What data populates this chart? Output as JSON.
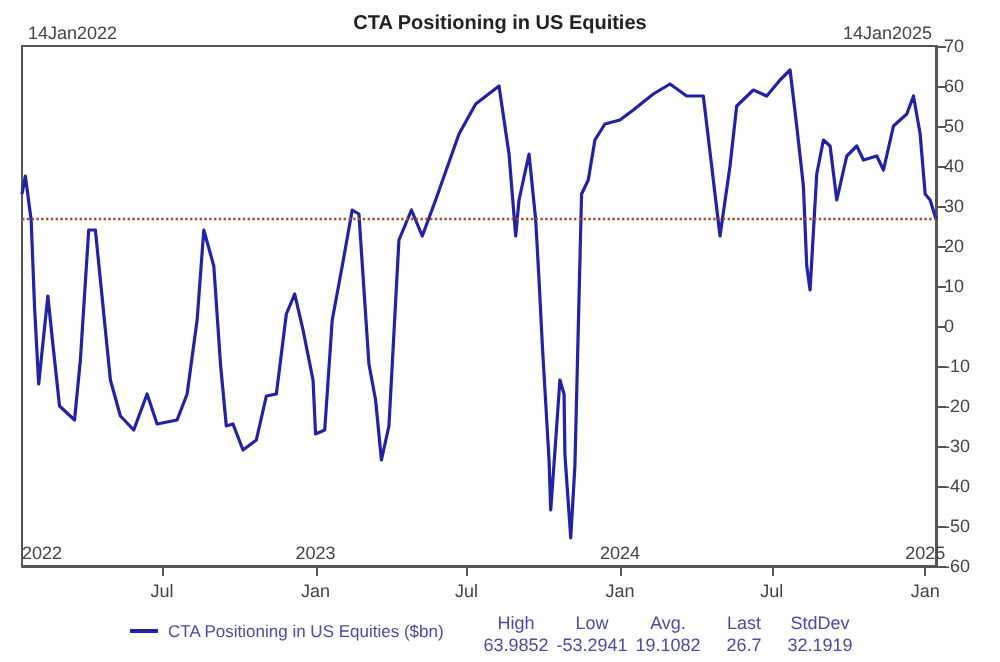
{
  "chart_data": {
    "type": "line",
    "title": "CTA Positioning in US Equities",
    "x": [
      "2022-01-14",
      "2022-01-18",
      "2022-01-25",
      "2022-01-29",
      "2022-02-03",
      "2022-02-14",
      "2022-02-20",
      "2022-02-28",
      "2022-03-18",
      "2022-03-25",
      "2022-04-04",
      "2022-04-12",
      "2022-04-18",
      "2022-04-30",
      "2022-05-12",
      "2022-05-28",
      "2022-06-13",
      "2022-06-25",
      "2022-07-19",
      "2022-07-31",
      "2022-08-12",
      "2022-08-20",
      "2022-09-01",
      "2022-09-09",
      "2022-09-16",
      "2022-09-24",
      "2022-10-06",
      "2022-10-22",
      "2022-11-03",
      "2022-11-15",
      "2022-11-27",
      "2022-12-07",
      "2022-12-17",
      "2022-12-29",
      "2023-01-01",
      "2023-01-12",
      "2023-01-21",
      "2023-02-02",
      "2023-02-14",
      "2023-02-22",
      "2023-03-06",
      "2023-03-14",
      "2023-03-21",
      "2023-03-30",
      "2023-04-11",
      "2023-04-26",
      "2023-05-09",
      "2023-05-25",
      "2023-06-22",
      "2023-07-12",
      "2023-08-09",
      "2023-08-21",
      "2023-08-29",
      "2023-09-02",
      "2023-09-14",
      "2023-09-22",
      "2023-09-26",
      "2023-09-30",
      "2023-10-08",
      "2023-10-10",
      "2023-10-16",
      "2023-10-21",
      "2023-10-26",
      "2023-10-27",
      "2023-11-03",
      "2023-11-08",
      "2023-11-16",
      "2023-11-24",
      "2023-12-02",
      "2023-12-14",
      "2024-01-01",
      "2024-01-17",
      "2024-02-10",
      "2024-03-01",
      "2024-03-21",
      "2024-04-10",
      "2024-04-20",
      "2024-04-30",
      "2024-05-12",
      "2024-05-20",
      "2024-06-09",
      "2024-06-25",
      "2024-07-11",
      "2024-07-23",
      "2024-07-31",
      "2024-08-08",
      "2024-08-12",
      "2024-08-16",
      "2024-08-24",
      "2024-09-01",
      "2024-09-09",
      "2024-09-17",
      "2024-09-29",
      "2024-10-11",
      "2024-10-19",
      "2024-11-04",
      "2024-11-12",
      "2024-11-24",
      "2024-12-10",
      "2024-12-18",
      "2024-12-26",
      "2025-01-01",
      "2025-01-07",
      "2025-01-14"
    ],
    "series": [
      {
        "name": "CTA Positioning in US Equities ($bn)",
        "color": "#2222a8",
        "values": [
          33,
          37.5,
          26.5,
          5,
          -14.5,
          7.5,
          -4.5,
          -20,
          -23.5,
          -8.5,
          24,
          24,
          11.5,
          -13.5,
          -22.5,
          -26,
          -17,
          -24.5,
          -23.5,
          -17,
          1.5,
          24,
          15,
          -9.5,
          -25,
          -24.5,
          -31,
          -28.5,
          -17.5,
          -17,
          3,
          8,
          -1,
          -13.5,
          -27,
          -26,
          1.5,
          15,
          29,
          28,
          -9.5,
          -18.5,
          -33.5,
          -25,
          21.5,
          29,
          22.5,
          31.5,
          48,
          55.5,
          60,
          43,
          22.5,
          31.5,
          43,
          26.5,
          11.5,
          -5,
          -33.5,
          -46,
          -28.5,
          -13.5,
          -17,
          -32,
          -53,
          -35,
          33,
          36.5,
          46.5,
          50.5,
          51.5,
          54,
          58,
          60.5,
          57.5,
          57.5,
          40,
          22.5,
          40,
          55,
          59,
          57.5,
          61.5,
          64,
          50,
          35,
          15,
          9,
          38,
          46.5,
          45,
          31.5,
          42.5,
          45,
          41.5,
          42.5,
          39,
          50,
          53,
          57.5,
          48,
          33,
          31.5,
          26.7
        ]
      }
    ],
    "xlim": [
      "2022-01-14",
      "2025-01-14"
    ],
    "xticks": [
      {
        "value": "2022-07-01",
        "label": "Jul"
      },
      {
        "value": "2023-01-01",
        "label": "Jan"
      },
      {
        "value": "2023-07-01",
        "label": "Jul"
      },
      {
        "value": "2024-01-01",
        "label": "Jan"
      },
      {
        "value": "2024-07-01",
        "label": "Jul"
      },
      {
        "value": "2025-01-01",
        "label": "Jan"
      }
    ],
    "ylim": [
      -60,
      70
    ],
    "yticks": [
      -60,
      -50,
      -40,
      -30,
      -20,
      -10,
      0,
      10,
      20,
      30,
      40,
      50,
      60,
      70
    ],
    "ref_lines": [
      {
        "axis": "y",
        "value": 26.7,
        "label": null,
        "color": "#a0522d",
        "line_style": "dotted"
      }
    ],
    "x2lim": [
      "2022-01-14",
      "2025-01-14"
    ],
    "x2ticks": [
      {
        "value": "2022-01-14",
        "label": "2022"
      },
      {
        "value": "2023-01-01",
        "label": "2023"
      },
      {
        "value": "2024-01-01",
        "label": "2024"
      },
      {
        "value": "2025-01-01",
        "label": "2025"
      }
    ],
    "annotations": [
      "14Jan2022",
      "14Jan2025",
      "High\n63.9852",
      "Low\n-53.2941",
      "Avg.\n19.1082",
      "Last\n26.7",
      "StdDev\n32.1919"
    ],
    "legend": "bottom",
    "grid": false,
    "marker": "none",
    "line_style": "solid"
  }
}
